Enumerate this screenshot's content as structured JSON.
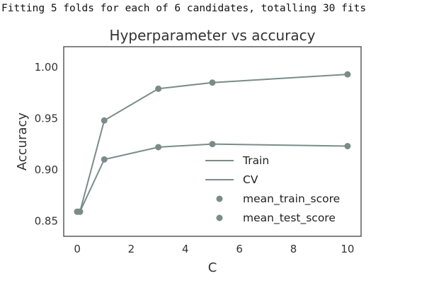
{
  "console": {
    "output_text": "Fitting 5 folds for each of 6 candidates, totalling 30 fits"
  },
  "chart_data": {
    "type": "line",
    "title": "Hyperparameter vs accuracy",
    "xlabel": "C",
    "ylabel": "Accuracy",
    "xlim": [
      -0.5,
      10.5
    ],
    "ylim": [
      0.835,
      1.02
    ],
    "x_ticks": [
      0,
      2,
      4,
      6,
      8,
      10
    ],
    "y_ticks": [
      0.85,
      0.9,
      0.95,
      1.0
    ],
    "x_tick_labels": [
      "0",
      "2",
      "4",
      "6",
      "8",
      "10"
    ],
    "y_tick_labels": [
      "0.85",
      "0.90",
      "0.95",
      "1.00"
    ],
    "x": [
      0.0001,
      0.1,
      1,
      3,
      5,
      10
    ],
    "series": [
      {
        "name": "Train",
        "values": [
          0.859,
          0.859,
          0.948,
          0.979,
          0.985,
          0.993
        ]
      },
      {
        "name": "CV",
        "values": [
          0.859,
          0.859,
          0.91,
          0.922,
          0.925,
          0.923
        ]
      }
    ],
    "scatter_series": [
      {
        "name": "mean_train_score"
      },
      {
        "name": "mean_test_score"
      }
    ],
    "legend_position": "lower-right",
    "grid": false,
    "colors": {
      "line": "#7a8c8a",
      "marker": "#7a8c8a",
      "axes": "#333333"
    }
  }
}
